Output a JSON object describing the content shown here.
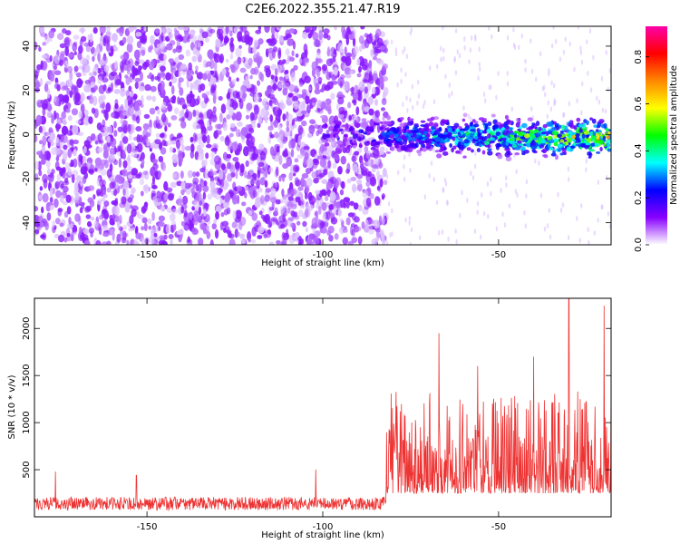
{
  "title": "C2E6.2022.355.21.47.R19",
  "chart_data": [
    {
      "type": "heatmap",
      "xlabel": "Height of straight line (km)",
      "ylabel": "Frequency (Hz)",
      "xlim": [
        -182,
        -18
      ],
      "ylim": [
        -50,
        49
      ],
      "xticks": [
        -150,
        -100,
        -50
      ],
      "yticks": [
        -40,
        -20,
        0,
        20,
        40
      ],
      "colorbar": {
        "label": "Normalized spectral amplitude",
        "range": [
          0,
          0.93
        ],
        "ticks": [
          0.0,
          0.2,
          0.4,
          0.6,
          0.8
        ],
        "colormap": [
          "#ffffff",
          "#8800ff",
          "#0000ff",
          "#00ffff",
          "#00ff00",
          "#ffff00",
          "#ff8800",
          "#ff0000",
          "#ff00aa"
        ]
      },
      "regions": [
        {
          "desc": "broadband noise",
          "x_range": [
            -182,
            -82
          ],
          "freq_range": [
            -50,
            49
          ],
          "amplitude": 0.05
        },
        {
          "desc": "narrowband signal",
          "x_range": [
            -100,
            -18
          ],
          "freq_center_start": 0,
          "freq_center_end": -2,
          "freq_halfwidth": 5,
          "amplitude_start": 0.15,
          "amplitude_end": 0.6
        }
      ]
    },
    {
      "type": "line",
      "xlabel": "Height of straight line (km)",
      "ylabel": "SNR (10 * v/v)",
      "xlim": [
        -182,
        -18
      ],
      "ylim": [
        0,
        2320
      ],
      "xticks": [
        -150,
        -100,
        -50
      ],
      "yticks": [
        500,
        1000,
        1500,
        2000
      ],
      "color": "#ee3333",
      "segments": [
        {
          "x_range": [
            -182,
            -82
          ],
          "baseline": 120,
          "spread": 140,
          "peaks": [
            {
              "x": -102,
              "y": 500
            },
            {
              "x": -176,
              "y": 480
            },
            {
              "x": -153,
              "y": 440
            }
          ]
        },
        {
          "x_range": [
            -82,
            -18
          ],
          "baseline": 250,
          "spread": 900,
          "peaks": [
            {
              "x": -67,
              "y": 1950
            },
            {
              "x": -56,
              "y": 1600
            },
            {
              "x": -40,
              "y": 1700
            },
            {
              "x": -30,
              "y": 2320
            },
            {
              "x": -20,
              "y": 2240
            },
            {
              "x": -18,
              "y": 1420
            }
          ]
        }
      ]
    }
  ]
}
